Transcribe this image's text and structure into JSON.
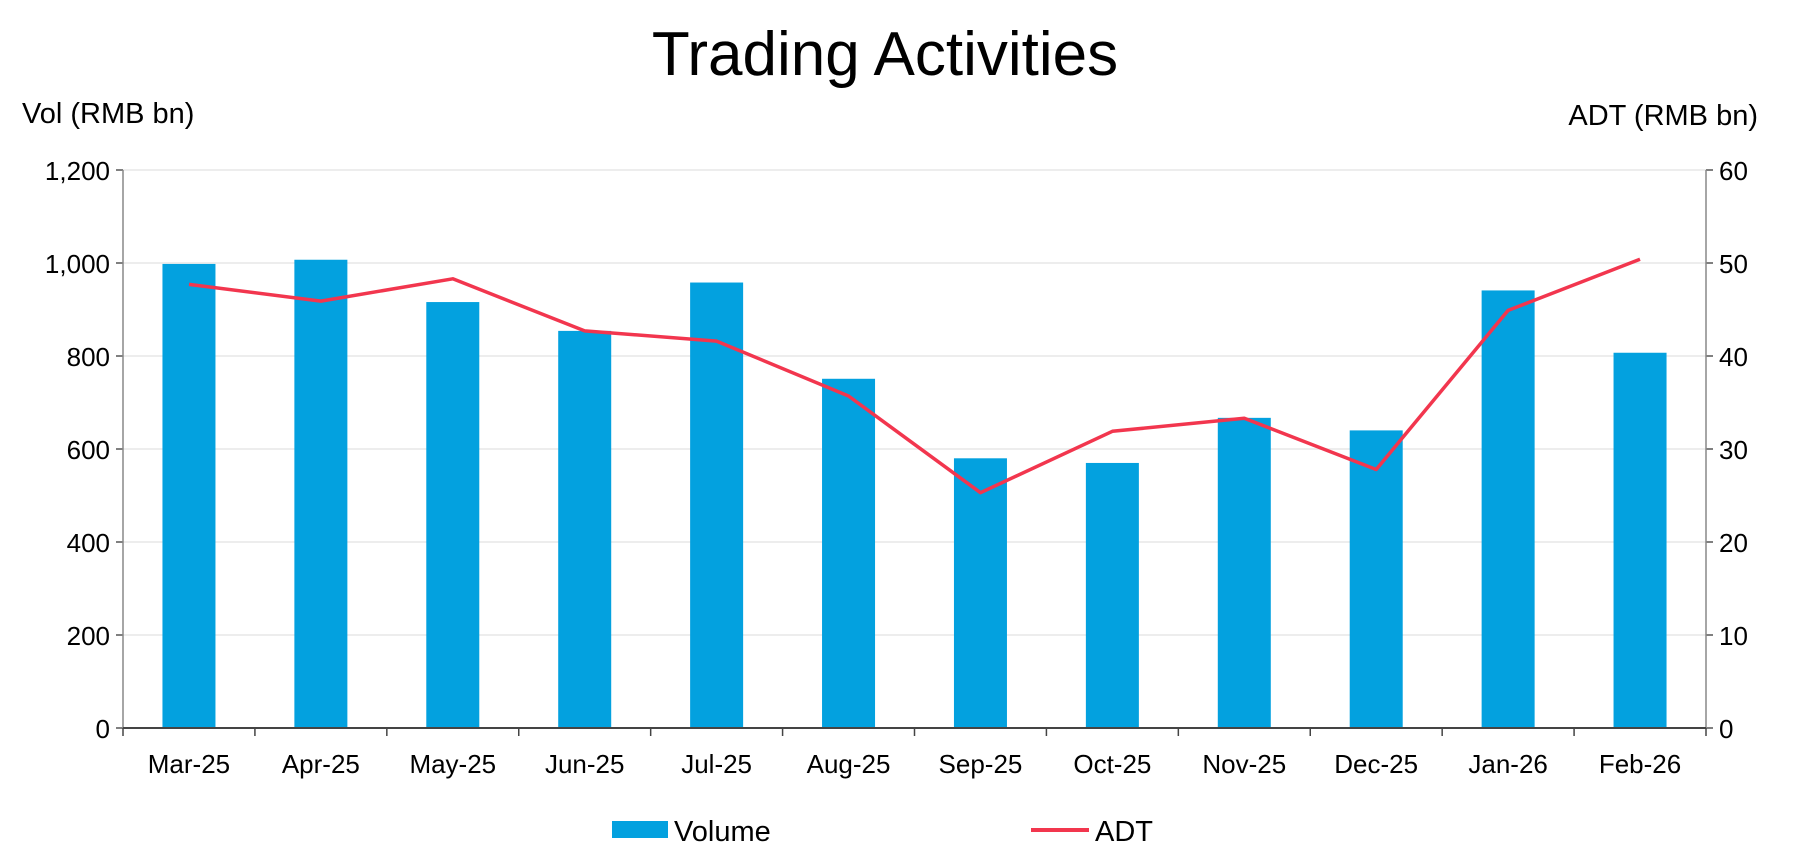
{
  "chart_data": {
    "type": "bar+line",
    "title": "Trading Activities",
    "categories": [
      "Mar-25",
      "Apr-25",
      "May-25",
      "Jun-25",
      "Jul-25",
      "Aug-25",
      "Sep-25",
      "Oct-25",
      "Nov-25",
      "Dec-25",
      "Jan-26",
      "Feb-26"
    ],
    "left_axis": {
      "label": "Vol (RMB bn)",
      "range": [
        0,
        1200
      ],
      "ticks": [
        "0",
        "200",
        "400",
        "600",
        "800",
        "1,000",
        "1,200"
      ],
      "tick_values": [
        0,
        200,
        400,
        600,
        800,
        1000,
        1200
      ]
    },
    "right_axis": {
      "label": "ADT (RMB bn)",
      "range": [
        0,
        60
      ],
      "ticks": [
        "0",
        "10",
        "20",
        "30",
        "40",
        "50",
        "60"
      ],
      "tick_values": [
        0,
        10,
        20,
        30,
        40,
        50,
        60
      ]
    },
    "series": [
      {
        "name": "Volume",
        "type": "bar",
        "axis": "left",
        "color": "#03A1DF",
        "values": [
          998,
          1007,
          916,
          854,
          958,
          751,
          580,
          570,
          667,
          640,
          941,
          807
        ]
      },
      {
        "name": "ADT",
        "type": "line",
        "axis": "right",
        "color": "#F2364E",
        "values": [
          47.7,
          45.9,
          48.3,
          42.7,
          41.6,
          35.7,
          25.3,
          31.9,
          33.3,
          27.8,
          44.9,
          50.4
        ]
      }
    ],
    "grid": true,
    "legend_position": "bottom"
  }
}
